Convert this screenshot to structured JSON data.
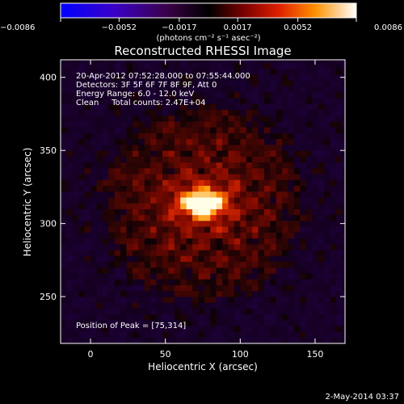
{
  "chart_data": {
    "type": "heatmap",
    "title": "Reconstructed RHESSI Image",
    "xlabel": "Heliocentric X (arcsec)",
    "ylabel": "Heliocentric Y (arcsec)",
    "xlim": [
      -20,
      170
    ],
    "ylim": [
      218,
      412
    ],
    "x_ticks": [
      0,
      50,
      100,
      150
    ],
    "x_tick_labels": [
      "0",
      "50",
      "100",
      "150"
    ],
    "y_ticks": [
      250,
      300,
      350,
      400
    ],
    "y_tick_labels": [
      "250",
      "300",
      "350",
      "400"
    ],
    "colorbar": {
      "min": -0.0086,
      "max": 0.0086,
      "ticks": [
        -0.0086,
        -0.0052,
        -0.0017,
        0.0017,
        0.0052,
        0.0086
      ],
      "tick_labels": [
        "−0.0086",
        "−0.0052",
        "−0.0017",
        "0.0017",
        "0.0052",
        "0.0086"
      ],
      "unit_label": "(photons cm⁻² s⁻¹ asec⁻²)"
    },
    "source": {
      "x": 75,
      "y": 314,
      "peak": 0.0086
    },
    "annotations": [
      "20-Apr-2012 07:52:28.000 to 07:55:44.000",
      "Detectors: 3F 5F 6F 7F 8F 9F, Att 0",
      "Energy Range: 6.0 - 12.0 keV",
      "Clean     Total counts: 2.47E+04"
    ],
    "peak_label": "Position of Peak = [75,314]"
  },
  "footer": {
    "timestamp": "2-May-2014 03:37"
  }
}
